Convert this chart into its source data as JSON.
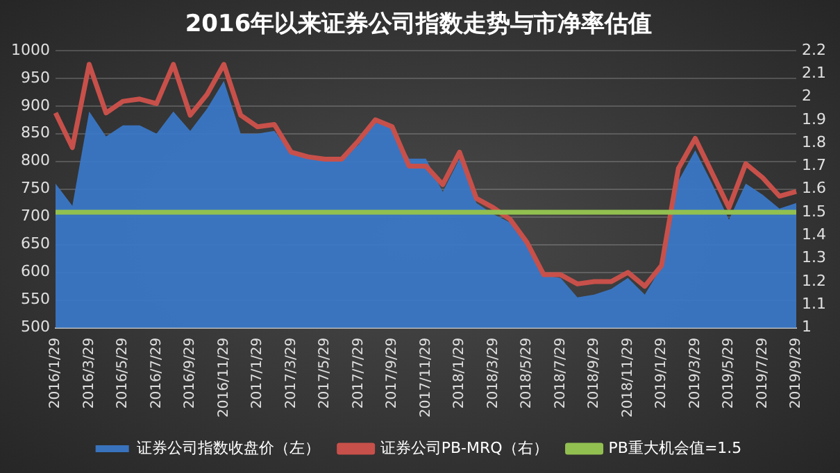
{
  "chart_data": {
    "type": "line",
    "title": "2016年以来证券公司指数走势与市净率估值",
    "categories": [
      "2016/1/29",
      null,
      "2016/3/29",
      null,
      "2016/5/29",
      null,
      "2016/7/29",
      null,
      "2016/9/29",
      null,
      "2016/11/29",
      null,
      "2017/1/29",
      null,
      "2017/3/29",
      null,
      "2017/5/29",
      null,
      "2017/7/29",
      null,
      "2017/9/29",
      null,
      "2017/11/29",
      null,
      "2018/1/29",
      null,
      "2018/3/29",
      null,
      "2018/5/29",
      null,
      "2018/7/29",
      null,
      "2018/9/29",
      null,
      "2018/11/29",
      null,
      "2019/1/29",
      null,
      "2019/3/29",
      null,
      "2019/5/29",
      null,
      "2019/7/29",
      null,
      "2019/9/29"
    ],
    "series": [
      {
        "name": "证券公司指数收盘价（左）",
        "type": "area",
        "color": "#3a78c8",
        "values": [
          760,
          720,
          890,
          845,
          865,
          865,
          850,
          890,
          855,
          895,
          945,
          850,
          850,
          855,
          815,
          810,
          800,
          805,
          830,
          870,
          860,
          805,
          805,
          745,
          805,
          725,
          705,
          690,
          650,
          595,
          590,
          555,
          560,
          570,
          590,
          560,
          610,
          765,
          820,
          760,
          695,
          760,
          740,
          715,
          725
        ]
      },
      {
        "name": "证券公司PB-MRQ（右）",
        "axis": "y2",
        "color": "#c8504a",
        "values": [
          1.93,
          1.78,
          2.14,
          1.93,
          1.98,
          1.99,
          1.97,
          2.14,
          1.92,
          2.01,
          2.14,
          1.92,
          1.87,
          1.88,
          1.76,
          1.74,
          1.73,
          1.73,
          1.81,
          1.9,
          1.87,
          1.7,
          1.7,
          1.62,
          1.76,
          1.56,
          1.52,
          1.47,
          1.37,
          1.23,
          1.23,
          1.19,
          1.2,
          1.2,
          1.24,
          1.18,
          1.27,
          1.69,
          1.82,
          1.67,
          1.52,
          1.71,
          1.65,
          1.57,
          1.59
        ]
      },
      {
        "name": "PB重大机会值=1.5",
        "axis": "y2",
        "color": "#92c050",
        "values": [
          1.5,
          1.5,
          1.5,
          1.5,
          1.5,
          1.5,
          1.5,
          1.5,
          1.5,
          1.5,
          1.5,
          1.5,
          1.5,
          1.5,
          1.5,
          1.5,
          1.5,
          1.5,
          1.5,
          1.5,
          1.5,
          1.5,
          1.5,
          1.5,
          1.5,
          1.5,
          1.5,
          1.5,
          1.5,
          1.5,
          1.5,
          1.5,
          1.5,
          1.5,
          1.5,
          1.5,
          1.5,
          1.5,
          1.5,
          1.5,
          1.5,
          1.5,
          1.5,
          1.5,
          1.5
        ]
      }
    ],
    "ylim": [
      500,
      1000
    ],
    "yticks": [
      500,
      550,
      600,
      650,
      700,
      750,
      800,
      850,
      900,
      950,
      1000
    ],
    "y2lim": [
      1,
      2.2
    ],
    "y2ticks": [
      1,
      1.1,
      1.2,
      1.3,
      1.4,
      1.5,
      1.6,
      1.7,
      1.8,
      1.9,
      2,
      2.1,
      2.2
    ],
    "grid": "y",
    "legend": "bottom",
    "marker": "none",
    "line_style": "solid"
  }
}
